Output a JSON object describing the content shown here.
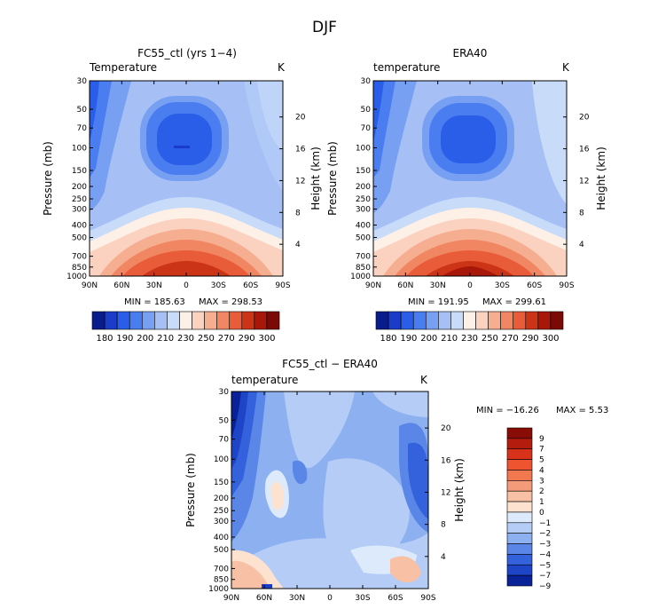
{
  "figure": {
    "title": "DJF"
  },
  "chart_data": [
    {
      "type": "heatmap",
      "title": "FC55_ctl (yrs 1−4)",
      "variable": "Temperature",
      "units": "K",
      "xlabel": "",
      "ylabel": "Pressure (mb)",
      "y2label": "Height (km)",
      "x_ticks": [
        "90N",
        "60N",
        "30N",
        "0",
        "30S",
        "60S",
        "90S"
      ],
      "y_ticks": [
        30,
        50,
        70,
        100,
        150,
        200,
        250,
        300,
        400,
        500,
        700,
        850,
        1000
      ],
      "y2_ticks": [
        20,
        16,
        12,
        8,
        4
      ],
      "min_label": "MIN = 185.63",
      "max_label": "MAX = 298.53",
      "min": 185.63,
      "max": 298.53,
      "colorbar_labels": [
        "180",
        "190",
        "200",
        "210",
        "230",
        "250",
        "270",
        "290",
        "300"
      ]
    },
    {
      "type": "heatmap",
      "title": "ERA40",
      "variable": "temperature",
      "units": "K",
      "xlabel": "",
      "ylabel": "Pressure (mb)",
      "y2label": "Height (km)",
      "x_ticks": [
        "90N",
        "60N",
        "30N",
        "0",
        "30S",
        "60S",
        "90S"
      ],
      "y_ticks": [
        30,
        50,
        70,
        100,
        150,
        200,
        250,
        300,
        400,
        500,
        700,
        850,
        1000
      ],
      "y2_ticks": [
        20,
        16,
        12,
        8,
        4
      ],
      "min_label": "MIN = 191.95",
      "max_label": "MAX = 299.61",
      "min": 191.95,
      "max": 299.61,
      "colorbar_labels": [
        "180",
        "190",
        "200",
        "210",
        "230",
        "250",
        "270",
        "290",
        "300"
      ]
    },
    {
      "type": "heatmap",
      "title": "FC55_ctl − ERA40",
      "variable": "temperature",
      "units": "K",
      "xlabel": "",
      "ylabel": "Pressure (mb)",
      "y2label": "Height (km)",
      "x_ticks": [
        "90N",
        "60N",
        "30N",
        "0",
        "30S",
        "60S",
        "90S"
      ],
      "y_ticks": [
        30,
        50,
        70,
        100,
        150,
        200,
        250,
        300,
        400,
        500,
        700,
        850,
        1000
      ],
      "y2_ticks": [
        20,
        16,
        12,
        8,
        4
      ],
      "min_label": "MIN = −16.26",
      "max_label": "MAX =    5.53",
      "min": -16.26,
      "max": 5.53,
      "colorbar_labels": [
        "9",
        "7",
        "5",
        "4",
        "3",
        "2",
        "1",
        "0",
        "−1",
        "−2",
        "−3",
        "−4",
        "−5",
        "−7",
        "−9"
      ]
    }
  ],
  "colors": {
    "abs_scale": [
      "#0a1c8c",
      "#1a3cc8",
      "#2b5ee8",
      "#4a7ef0",
      "#78a0f2",
      "#a6c0f6",
      "#c8dcfa",
      "#fdf0e6",
      "#fbd2c0",
      "#f6ae90",
      "#f08662",
      "#e85c3a",
      "#cc3418",
      "#a8180a",
      "#7a0a06"
    ],
    "diff_scale": [
      "#8a0c06",
      "#b41c0e",
      "#d8321a",
      "#ee5430",
      "#f27850",
      "#f49c7a",
      "#f8c0a4",
      "#fde2d0",
      "#ddeafc",
      "#b4ccf6",
      "#8cb0f0",
      "#5a86e8",
      "#3462dc",
      "#1e44c8",
      "#0a2298"
    ]
  }
}
